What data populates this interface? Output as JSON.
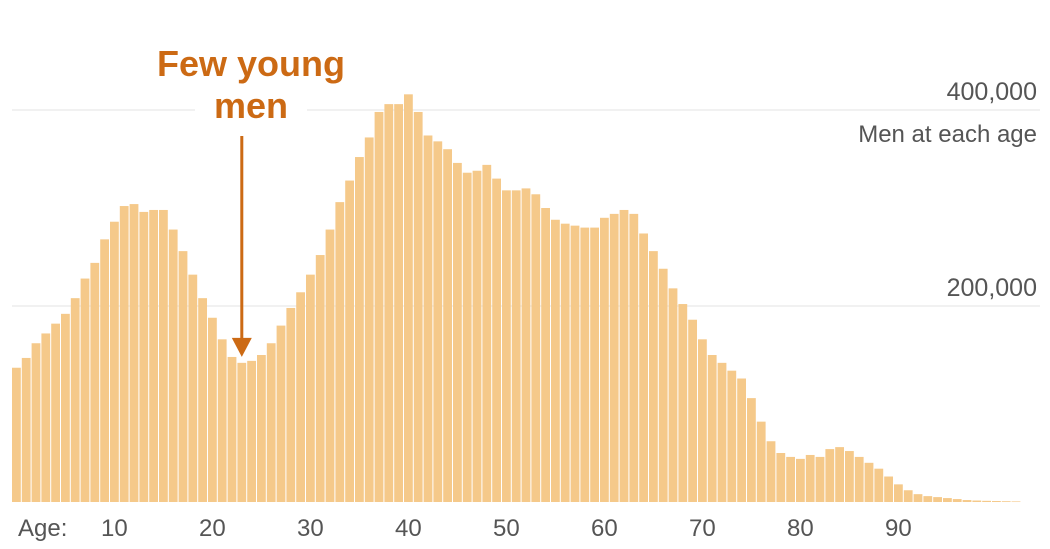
{
  "chart_data": {
    "type": "bar",
    "ylabel": "Men at each age",
    "ylim": [
      0,
      420000
    ],
    "grid": true,
    "x": [
      0,
      1,
      2,
      3,
      4,
      5,
      6,
      7,
      8,
      9,
      10,
      11,
      12,
      13,
      14,
      15,
      16,
      17,
      18,
      19,
      20,
      21,
      22,
      23,
      24,
      25,
      26,
      27,
      28,
      29,
      30,
      31,
      32,
      33,
      34,
      35,
      36,
      37,
      38,
      39,
      40,
      41,
      42,
      43,
      44,
      45,
      46,
      47,
      48,
      49,
      50,
      51,
      52,
      53,
      54,
      55,
      56,
      57,
      58,
      59,
      60,
      61,
      62,
      63,
      64,
      65,
      66,
      67,
      68,
      69,
      70,
      71,
      72,
      73,
      74,
      75,
      76,
      77,
      78,
      79,
      80,
      81,
      82,
      83,
      84,
      85,
      86,
      87,
      88,
      89,
      90,
      91,
      92,
      93,
      94,
      95,
      96,
      97,
      98,
      99,
      100,
      101,
      102
    ],
    "values": [
      137000,
      147000,
      162000,
      172000,
      182000,
      192000,
      208000,
      228000,
      244000,
      268000,
      286000,
      302000,
      304000,
      296000,
      298000,
      298000,
      278000,
      256000,
      232000,
      208000,
      188000,
      166000,
      148000,
      142000,
      144000,
      150000,
      162000,
      180000,
      198000,
      214000,
      232000,
      252000,
      278000,
      306000,
      328000,
      352000,
      372000,
      398000,
      406000,
      406000,
      416000,
      398000,
      374000,
      368000,
      360000,
      346000,
      336000,
      338000,
      344000,
      330000,
      318000,
      318000,
      320000,
      314000,
      300000,
      288000,
      284000,
      282000,
      280000,
      280000,
      290000,
      294000,
      298000,
      294000,
      274000,
      256000,
      238000,
      218000,
      202000,
      186000,
      166000,
      150000,
      142000,
      134000,
      126000,
      106000,
      82000,
      62000,
      50000,
      46000,
      44000,
      48000,
      46000,
      54000,
      56000,
      52000,
      46000,
      40000,
      34000,
      26000,
      18000,
      12000,
      8000,
      6000,
      5000,
      4000,
      3000,
      2000,
      1500,
      1200,
      1000,
      800,
      600
    ],
    "x_ticks": [
      10,
      20,
      30,
      40,
      50,
      60,
      70,
      80,
      90
    ],
    "x_tick_labels": [
      "10",
      "20",
      "30",
      "40",
      "50",
      "60",
      "70",
      "80",
      "90"
    ],
    "x_prefix_label": "Age:",
    "y_ticks": [
      200000,
      400000
    ],
    "y_tick_labels": [
      "200,000",
      "400,000"
    ],
    "annotation": {
      "lines": [
        "Few young",
        "men"
      ],
      "target_age": 23
    },
    "colors": {
      "bar": "#f5c98a",
      "grid": "#e3e3e3",
      "annotation": "#cc6a14",
      "text": "#555555"
    }
  }
}
